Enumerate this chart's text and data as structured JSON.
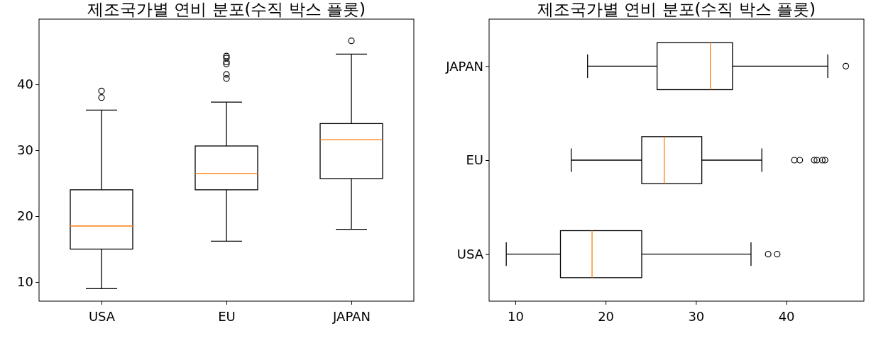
{
  "chart_data": [
    {
      "type": "box",
      "title": "제조국가별 연비 분포(수직 박스 플롯)",
      "categories": [
        "USA",
        "EU",
        "JAPAN"
      ],
      "ylim": [
        7.1,
        49.9
      ],
      "yticks": [
        10,
        20,
        30,
        40
      ],
      "marker": "circle",
      "boxes": [
        {
          "low": 9,
          "q1": 15,
          "median": 18.5,
          "q3": 24,
          "high": 36.1,
          "outliers": [
            38,
            39
          ]
        },
        {
          "low": 16.2,
          "q1": 24,
          "median": 26.5,
          "q3": 30.65,
          "high": 37.3,
          "outliers": [
            40.9,
            41.5,
            43.1,
            43.4,
            44,
            44.3
          ]
        },
        {
          "low": 18,
          "q1": 25.7,
          "median": 31.6,
          "q3": 34.05,
          "high": 44.6,
          "outliers": [
            46.6
          ]
        }
      ]
    },
    {
      "type": "box",
      "title": "제조국가별 연비 분포(수직 박스 플롯)",
      "orientation": "horizontal",
      "categories": [
        "JAPAN",
        "EU",
        "USA"
      ],
      "xlim": [
        7.1,
        48.6
      ],
      "xticks": [
        10,
        20,
        30,
        40
      ],
      "marker": "circle",
      "boxes": [
        {
          "low": 18,
          "q1": 25.7,
          "median": 31.6,
          "q3": 34.05,
          "high": 44.6,
          "outliers": [
            46.6
          ]
        },
        {
          "low": 16.2,
          "q1": 24,
          "median": 26.5,
          "q3": 30.65,
          "high": 37.3,
          "outliers": [
            40.9,
            41.5,
            43.1,
            43.4,
            44,
            44.3
          ]
        },
        {
          "low": 9,
          "q1": 15,
          "median": 18.5,
          "q3": 24,
          "high": 36.1,
          "outliers": [
            38,
            39
          ]
        }
      ]
    }
  ]
}
